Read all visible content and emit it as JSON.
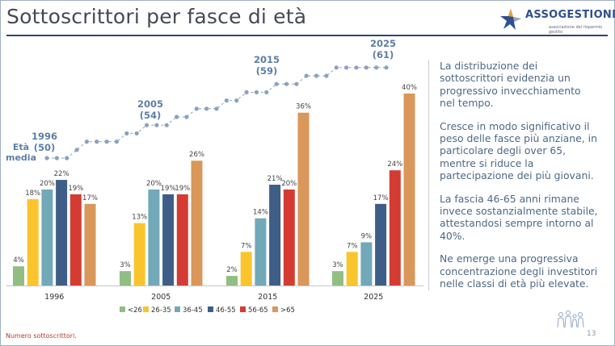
{
  "header": {
    "title": "Sottoscrittori per fasce di età",
    "logo_text": "ASSOGESTIONI",
    "logo_sub": "associazione del risparmio gestito"
  },
  "colors": {
    "title_rule": "#2f4570",
    "text": "#4d6987",
    "line": "#8aa2bd",
    "annotation": "#5c7ea6"
  },
  "chart_data": {
    "type": "bar",
    "categories": [
      "1996",
      "2005",
      "2015",
      "2025"
    ],
    "series": [
      {
        "name": "<26",
        "color": "#92be84",
        "values": [
          4,
          3,
          2,
          3
        ]
      },
      {
        "name": "26-35",
        "color": "#fac52c",
        "values": [
          18,
          13,
          7,
          7
        ]
      },
      {
        "name": "36-45",
        "color": "#72a9b8",
        "values": [
          20,
          20,
          14,
          9
        ]
      },
      {
        "name": "46-55",
        "color": "#3f5e87",
        "values": [
          22,
          19,
          21,
          17
        ]
      },
      {
        "name": "56-65",
        "color": "#d43c33",
        "values": [
          19,
          19,
          20,
          24
        ]
      },
      {
        "name": ">65",
        "color": "#d9975a",
        "values": [
          17,
          26,
          36,
          40
        ]
      }
    ],
    "value_suffix": "%",
    "ylim": [
      0,
      42
    ],
    "legend_position": "bottom",
    "grid": false,
    "age_line": {
      "label": "Età media",
      "label_lines": [
        "Età",
        "media"
      ],
      "values": [
        50,
        50,
        50,
        51,
        52,
        52,
        52,
        52,
        53,
        53,
        54,
        54,
        54,
        55,
        55,
        56,
        56,
        56,
        57,
        57,
        58,
        58,
        58,
        59,
        59,
        59,
        60,
        60,
        60,
        61,
        61,
        61,
        61,
        61,
        61
      ],
      "annotations": [
        {
          "year": "1996",
          "value": "(50)"
        },
        {
          "year": "2005",
          "value": "(54)"
        },
        {
          "year": "2015",
          "value": "(59)"
        },
        {
          "year": "2025",
          "value": "(61)"
        }
      ]
    }
  },
  "panel": {
    "paragraphs": [
      "La distribuzione dei sottoscrittori evidenzia un progressivo invecchiamento nel tempo.",
      "Cresce in modo significativo il peso delle fasce più anziane, in particolare degli over 65, mentre si riduce la partecipazione dei più giovani.",
      "La fascia 46-65 anni rimane invece sostanzialmente stabile, attestandosi sempre intorno al 40%.",
      "Ne emerge una progressiva concentrazione degli investitori nelle classi di età più elevate."
    ]
  },
  "footer": {
    "note": "Numero sottoscrittori.",
    "page": "13"
  }
}
